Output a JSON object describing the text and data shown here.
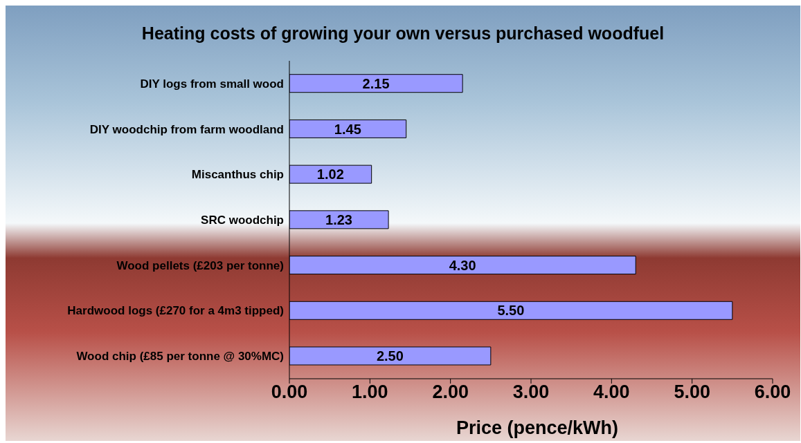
{
  "chart_data": {
    "type": "bar",
    "orientation": "horizontal",
    "title": "Heating costs of growing your own versus purchased woodfuel",
    "xlabel": "Price (pence/kWh)",
    "categories": [
      "DIY logs from small wood",
      "DIY woodchip from farm woodland",
      "Miscanthus chip",
      "SRC woodchip ",
      "Wood pellets (£203 per tonne)",
      "Hardwood logs (£270 for a 4m3 tipped)",
      "Wood chip (£85 per tonne @ 30%MC)"
    ],
    "values": [
      2.15,
      1.45,
      1.02,
      1.23,
      4.3,
      5.5,
      2.5
    ],
    "value_labels": [
      "2.15",
      "1.45",
      "1.02",
      "1.23",
      "4.30",
      "5.50",
      "2.50"
    ],
    "color": "#9999ff",
    "xlim": [
      0,
      6
    ],
    "xticks": [
      {
        "value": 0,
        "label": "0.00"
      },
      {
        "value": 1,
        "label": "1.00"
      },
      {
        "value": 2,
        "label": "2.00"
      },
      {
        "value": 3,
        "label": "3.00"
      },
      {
        "value": 4,
        "label": "4.00"
      },
      {
        "value": 5,
        "label": "5.00"
      },
      {
        "value": 6,
        "label": "6.00"
      }
    ],
    "grid": false,
    "legend": false
  }
}
